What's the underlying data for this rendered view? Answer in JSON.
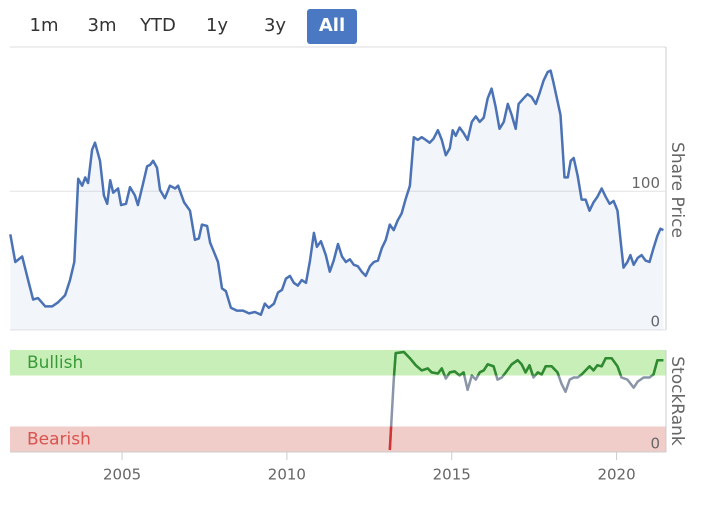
{
  "range_selector": {
    "buttons": [
      "1m",
      "3m",
      "YTD",
      "1y",
      "3y",
      "All"
    ],
    "selected": 5
  },
  "chart_data": [
    {
      "type": "area",
      "ylabel": "Share Price",
      "color": "#4a72b5",
      "fill": "rgba(74,114,181,0.07)",
      "xlim": [
        2001.6,
        2021.5
      ],
      "ylim": [
        0,
        204
      ],
      "yticks": [
        0,
        100
      ],
      "grid": true,
      "x": [
        2001.61,
        2001.76,
        2001.97,
        2002.15,
        2002.3,
        2002.45,
        2002.67,
        2002.88,
        2003.06,
        2003.27,
        2003.42,
        2003.55,
        2003.67,
        2003.79,
        2003.88,
        2003.97,
        2004.09,
        2004.18,
        2004.33,
        2004.45,
        2004.55,
        2004.64,
        2004.73,
        2004.88,
        2004.97,
        2005.12,
        2005.24,
        2005.39,
        2005.48,
        2005.64,
        2005.76,
        2005.85,
        2005.94,
        2006.06,
        2006.15,
        2006.3,
        2006.45,
        2006.61,
        2006.7,
        2006.88,
        2007.06,
        2007.21,
        2007.33,
        2007.42,
        2007.58,
        2007.67,
        2007.79,
        2007.91,
        2008.03,
        2008.15,
        2008.3,
        2008.48,
        2008.67,
        2008.85,
        2009.03,
        2009.21,
        2009.33,
        2009.45,
        2009.61,
        2009.73,
        2009.85,
        2009.97,
        2010.09,
        2010.21,
        2010.33,
        2010.45,
        2010.58,
        2010.7,
        2010.82,
        2010.91,
        2011.03,
        2011.18,
        2011.3,
        2011.42,
        2011.55,
        2011.67,
        2011.79,
        2011.91,
        2012.03,
        2012.15,
        2012.27,
        2012.39,
        2012.52,
        2012.64,
        2012.76,
        2012.88,
        2013.0,
        2013.12,
        2013.24,
        2013.36,
        2013.48,
        2013.61,
        2013.73,
        2013.85,
        2013.97,
        2014.09,
        2014.21,
        2014.33,
        2014.45,
        2014.58,
        2014.7,
        2014.82,
        2014.94,
        2015.03,
        2015.12,
        2015.24,
        2015.36,
        2015.48,
        2015.61,
        2015.73,
        2015.85,
        2015.97,
        2016.09,
        2016.21,
        2016.33,
        2016.45,
        2016.58,
        2016.7,
        2016.82,
        2016.94,
        2017.03,
        2017.18,
        2017.3,
        2017.42,
        2017.55,
        2017.67,
        2017.79,
        2017.91,
        2018.0,
        2018.09,
        2018.21,
        2018.3,
        2018.42,
        2018.52,
        2018.61,
        2018.7,
        2018.82,
        2018.94,
        2019.06,
        2019.18,
        2019.3,
        2019.42,
        2019.55,
        2019.67,
        2019.79,
        2019.91,
        2020.03,
        2020.12,
        2020.21,
        2020.33,
        2020.42,
        2020.52,
        2020.64,
        2020.76,
        2020.88,
        2021.0,
        2021.12,
        2021.24,
        2021.33,
        2021.42
      ],
      "values": [
        69,
        49,
        53,
        36,
        22,
        23,
        17,
        17,
        20,
        25,
        36,
        49,
        109,
        104,
        110,
        106,
        130,
        135,
        122,
        97,
        91,
        108,
        99,
        102,
        90,
        91,
        103,
        97,
        90,
        106,
        118,
        119,
        122,
        117,
        101,
        95,
        104,
        102,
        104,
        92,
        86,
        65,
        66,
        76,
        75,
        63,
        56,
        49,
        30,
        28,
        16,
        14,
        14,
        12,
        13,
        11,
        19,
        16,
        19,
        27,
        29,
        37,
        39,
        34,
        32,
        36,
        34,
        50,
        70,
        60,
        64,
        54,
        42,
        50,
        62,
        53,
        49,
        51,
        47,
        46,
        42,
        39,
        46,
        49,
        50,
        59,
        65,
        76,
        72,
        79,
        84,
        95,
        104,
        139,
        137,
        139,
        137,
        135,
        138,
        144,
        137,
        126,
        131,
        144,
        140,
        146,
        142,
        137,
        150,
        154,
        150,
        153,
        167,
        174,
        161,
        145,
        150,
        163,
        155,
        145,
        163,
        167,
        170,
        168,
        163,
        171,
        180,
        186,
        187,
        178,
        165,
        155,
        110,
        110,
        122,
        124,
        111,
        94,
        94,
        86,
        92,
        96,
        102,
        96,
        91,
        93,
        86,
        65,
        45,
        49,
        54,
        47,
        52,
        54,
        50,
        49,
        59,
        68,
        73,
        72
      ]
    },
    {
      "type": "line",
      "ylabel": "StockRank",
      "color": "#8a96a8",
      "xlim": [
        2001.6,
        2021.5
      ],
      "xticks": [
        2005,
        2010,
        2015,
        2020
      ],
      "ylim": [
        0,
        100
      ],
      "yticks": [
        0
      ],
      "bands": [
        {
          "label": "Bullish",
          "from": 75,
          "to": 100,
          "color": "#c8efb8",
          "label_color": "#3a9a3a",
          "line_color": "#2e8b2e"
        },
        {
          "label": "Bearish",
          "from": 0,
          "to": 25,
          "color": "#f1cdc9",
          "label_color": "#d9534f",
          "line_color": "#d33333"
        }
      ],
      "x": [
        2013.12,
        2013.24,
        2013.3,
        2013.55,
        2013.73,
        2013.91,
        2014.09,
        2014.27,
        2014.39,
        2014.58,
        2014.7,
        2014.82,
        2014.94,
        2015.09,
        2015.24,
        2015.36,
        2015.48,
        2015.61,
        2015.73,
        2015.85,
        2015.97,
        2016.09,
        2016.27,
        2016.39,
        2016.52,
        2016.64,
        2016.82,
        2017.0,
        2017.12,
        2017.24,
        2017.36,
        2017.48,
        2017.61,
        2017.73,
        2017.85,
        2018.03,
        2018.21,
        2018.33,
        2018.45,
        2018.58,
        2018.7,
        2018.82,
        2018.94,
        2019.06,
        2019.18,
        2019.3,
        2019.42,
        2019.55,
        2019.67,
        2019.85,
        2020.03,
        2020.15,
        2020.33,
        2020.52,
        2020.64,
        2020.82,
        2021.0,
        2021.12,
        2021.24,
        2021.42
      ],
      "values": [
        2,
        70,
        97,
        98,
        92,
        85,
        80,
        82,
        78,
        77,
        82,
        72,
        78,
        79,
        75,
        78,
        61,
        75,
        71,
        78,
        80,
        86,
        84,
        71,
        73,
        78,
        86,
        90,
        86,
        78,
        85,
        73,
        78,
        76,
        84,
        84,
        78,
        67,
        59,
        71,
        73,
        73,
        76,
        80,
        84,
        80,
        85,
        84,
        92,
        92,
        84,
        73,
        71,
        63,
        69,
        73,
        73,
        76,
        90,
        90
      ]
    }
  ]
}
